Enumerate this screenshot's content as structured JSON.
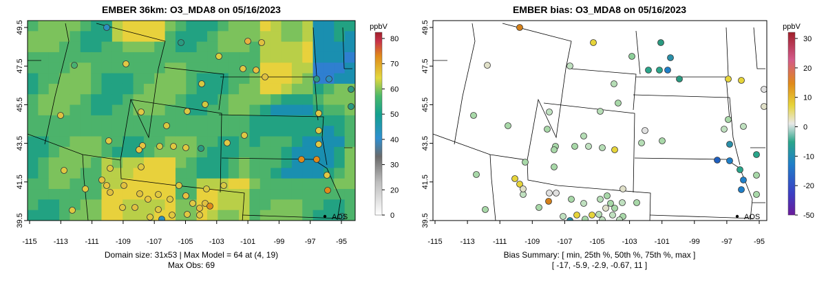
{
  "left_panel": {
    "title": "EMBER 36km: O3_MDA8 on 05/16/2023",
    "colorbar_unit": "ppbV",
    "colorbar_ticks": [
      "80",
      "70",
      "60",
      "50",
      "40",
      "30",
      "20",
      "0"
    ],
    "caption_line1": "Domain size: 31x53 | Max Model = 64 at (4, 19)",
    "caption_line2": "Max Obs: 69"
  },
  "right_panel": {
    "title": "EMBER bias: O3_MDA8 on 05/16/2023",
    "colorbar_unit": "ppbV",
    "colorbar_ticks": [
      "30",
      "20",
      "10",
      "0",
      "-10",
      "-20",
      "-50"
    ],
    "caption_line1": "Bias Summary: [ min, 25th %, 50th %, 75th %, max ]",
    "caption_line2": "[ -17,   -5.9,   -2.9,   -0.67,   11 ]"
  },
  "axes": {
    "x_ticks": [
      "-115",
      "-113",
      "-111",
      "-109",
      "-107",
      "-105",
      "-103",
      "-101",
      "-99",
      "-97",
      "-95"
    ],
    "y_ticks": [
      "49.5",
      "47.5",
      "45.5",
      "43.5",
      "41.5",
      "39.5"
    ]
  },
  "city_label": "AOS",
  "colors": {
    "model_high": "#e8d13c",
    "model_mid": "#4caf6e",
    "model_low": "#1a8fb0",
    "obs_high": "#e08a1a",
    "bias_pos": "#d4a017",
    "bias_neg": "#1f5fbf"
  }
}
